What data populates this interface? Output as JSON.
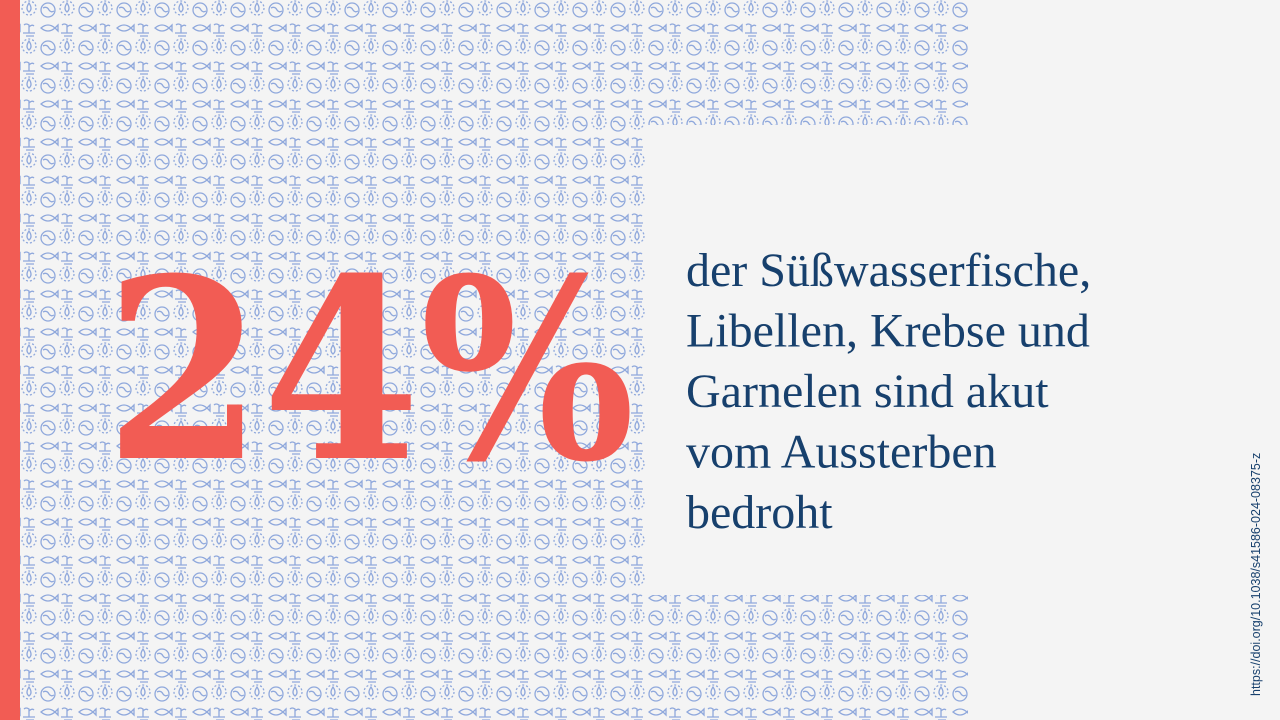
{
  "statistic": "24%",
  "text_lines": [
    "der Süßwasserfische,",
    "Libellen, Krebse und",
    "Garnelen sind akut",
    "vom Aussterben",
    "bedroht"
  ],
  "source": "https://doi.org/10.1038/s41586-024-08375-z"
}
